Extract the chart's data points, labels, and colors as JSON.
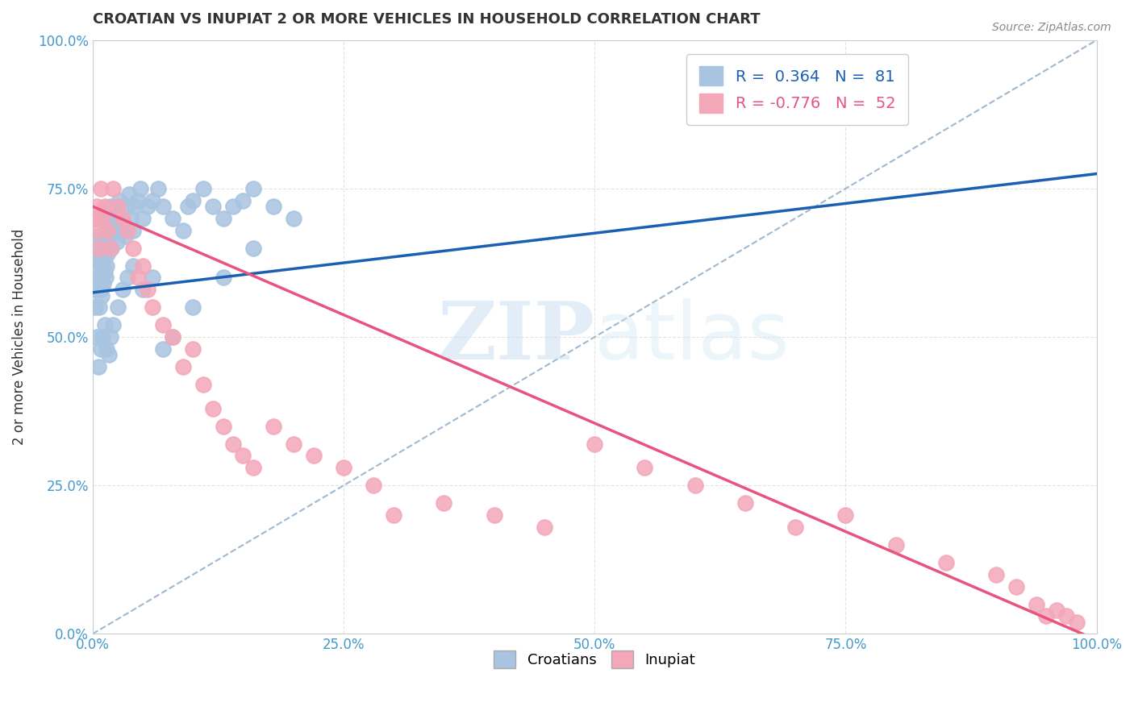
{
  "title": "CROATIAN VS INUPIAT 2 OR MORE VEHICLES IN HOUSEHOLD CORRELATION CHART",
  "source": "Source: ZipAtlas.com",
  "xlabel": "",
  "ylabel": "2 or more Vehicles in Household",
  "xlim": [
    0,
    1
  ],
  "ylim": [
    0,
    1
  ],
  "xticks": [
    0,
    0.25,
    0.5,
    0.75,
    1.0
  ],
  "yticks": [
    0,
    0.25,
    0.5,
    0.75,
    1.0
  ],
  "xticklabels": [
    "0.0%",
    "25.0%",
    "50.0%",
    "75.0%",
    "100.0%"
  ],
  "yticklabels": [
    "0.0%",
    "25.0%",
    "50.0%",
    "75.0%",
    "100.0%"
  ],
  "croatian_color": "#a8c4e0",
  "inupiat_color": "#f4a7b9",
  "trend_blue": "#1a5fb4",
  "trend_pink": "#e75480",
  "dashed_color": "#a0b8d0",
  "legend_R_croatian": "R =  0.364",
  "legend_N_croatian": "N =  81",
  "legend_R_inupiat": "R = -0.776",
  "legend_N_inupiat": "N =  52",
  "watermark": "ZIPatlas",
  "croatian_x": [
    0.003,
    0.004,
    0.005,
    0.005,
    0.006,
    0.006,
    0.007,
    0.007,
    0.008,
    0.008,
    0.009,
    0.009,
    0.01,
    0.01,
    0.011,
    0.011,
    0.012,
    0.012,
    0.013,
    0.013,
    0.014,
    0.014,
    0.015,
    0.015,
    0.016,
    0.017,
    0.018,
    0.019,
    0.02,
    0.022,
    0.024,
    0.025,
    0.027,
    0.028,
    0.03,
    0.032,
    0.034,
    0.036,
    0.038,
    0.04,
    0.042,
    0.045,
    0.048,
    0.05,
    0.055,
    0.06,
    0.065,
    0.07,
    0.08,
    0.09,
    0.095,
    0.1,
    0.11,
    0.12,
    0.13,
    0.14,
    0.15,
    0.16,
    0.18,
    0.2,
    0.003,
    0.004,
    0.006,
    0.008,
    0.01,
    0.012,
    0.014,
    0.016,
    0.018,
    0.02,
    0.025,
    0.03,
    0.035,
    0.04,
    0.05,
    0.06,
    0.07,
    0.08,
    0.1,
    0.13,
    0.16
  ],
  "croatian_y": [
    0.62,
    0.58,
    0.65,
    0.7,
    0.6,
    0.63,
    0.67,
    0.55,
    0.58,
    0.64,
    0.6,
    0.57,
    0.62,
    0.66,
    0.63,
    0.59,
    0.64,
    0.61,
    0.68,
    0.6,
    0.65,
    0.62,
    0.7,
    0.64,
    0.66,
    0.68,
    0.72,
    0.65,
    0.68,
    0.7,
    0.66,
    0.72,
    0.73,
    0.68,
    0.7,
    0.67,
    0.72,
    0.74,
    0.7,
    0.68,
    0.72,
    0.73,
    0.75,
    0.7,
    0.72,
    0.73,
    0.75,
    0.72,
    0.7,
    0.68,
    0.72,
    0.73,
    0.75,
    0.72,
    0.7,
    0.72,
    0.73,
    0.75,
    0.72,
    0.7,
    0.55,
    0.5,
    0.45,
    0.48,
    0.5,
    0.52,
    0.48,
    0.47,
    0.5,
    0.52,
    0.55,
    0.58,
    0.6,
    0.62,
    0.58,
    0.6,
    0.48,
    0.5,
    0.55,
    0.6,
    0.65
  ],
  "inupiat_x": [
    0.003,
    0.004,
    0.005,
    0.006,
    0.008,
    0.01,
    0.012,
    0.015,
    0.018,
    0.02,
    0.025,
    0.03,
    0.035,
    0.04,
    0.045,
    0.05,
    0.055,
    0.06,
    0.07,
    0.08,
    0.09,
    0.1,
    0.11,
    0.12,
    0.13,
    0.14,
    0.15,
    0.16,
    0.18,
    0.2,
    0.22,
    0.25,
    0.28,
    0.3,
    0.35,
    0.4,
    0.45,
    0.5,
    0.55,
    0.6,
    0.65,
    0.7,
    0.75,
    0.8,
    0.85,
    0.9,
    0.92,
    0.94,
    0.95,
    0.96,
    0.97,
    0.98
  ],
  "inupiat_y": [
    0.7,
    0.72,
    0.68,
    0.65,
    0.75,
    0.7,
    0.72,
    0.68,
    0.65,
    0.75,
    0.72,
    0.7,
    0.68,
    0.65,
    0.6,
    0.62,
    0.58,
    0.55,
    0.52,
    0.5,
    0.45,
    0.48,
    0.42,
    0.38,
    0.35,
    0.32,
    0.3,
    0.28,
    0.35,
    0.32,
    0.3,
    0.28,
    0.25,
    0.2,
    0.22,
    0.2,
    0.18,
    0.32,
    0.28,
    0.25,
    0.22,
    0.18,
    0.2,
    0.15,
    0.12,
    0.1,
    0.08,
    0.05,
    0.03,
    0.04,
    0.03,
    0.02
  ],
  "blue_trend_x": [
    0.0,
    1.0
  ],
  "blue_trend_y_intercept": 0.575,
  "blue_trend_slope": 0.2,
  "pink_trend_x": [
    0.0,
    1.0
  ],
  "pink_trend_y_intercept": 0.72,
  "pink_trend_slope": -0.73
}
